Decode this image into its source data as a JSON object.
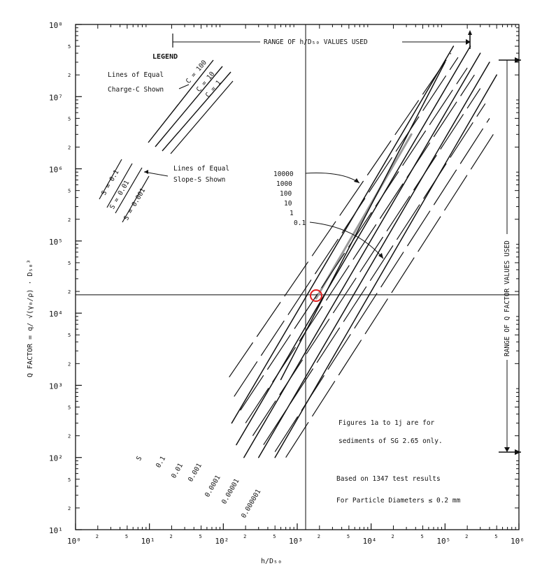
{
  "chart_data": {
    "type": "line",
    "title": "",
    "xlabel": "h/D₅₀",
    "ylabel": "Q  FACTOR  =  q/ √(γ₀/ρ) · D₅₀³",
    "x_scale": "log",
    "y_scale": "log",
    "xlim": [
      1,
      1000000
    ],
    "ylim": [
      10,
      100000000
    ],
    "x_major_ticks": [
      {
        "value": 1,
        "label": "10⁰"
      },
      {
        "value": 10,
        "label": "10¹"
      },
      {
        "value": 100,
        "label": "10²"
      },
      {
        "value": 1000,
        "label": "10³"
      },
      {
        "value": 10000,
        "label": "10⁴"
      },
      {
        "value": 100000,
        "label": "10⁵"
      },
      {
        "value": 1000000,
        "label": "10⁶"
      }
    ],
    "y_major_ticks": [
      {
        "value": 10,
        "label": "10¹"
      },
      {
        "value": 100,
        "label": "10²"
      },
      {
        "value": 1000,
        "label": "10³"
      },
      {
        "value": 10000,
        "label": "10⁴"
      },
      {
        "value": 100000,
        "label": "10⁵"
      },
      {
        "value": 1000000,
        "label": "10⁶"
      },
      {
        "value": 10000000,
        "label": "10⁷"
      },
      {
        "value": 100000000,
        "label": "10⁸"
      }
    ],
    "minor_tick_labels": [
      "2",
      "5"
    ],
    "slope_lines": [
      {
        "label": "S",
        "x": [
          1800,
          35000
        ],
        "y": [
          16000,
          3000000
        ]
      },
      {
        "label": "0.1",
        "x": [
          600,
          100000
        ],
        "y": [
          1200,
          30000000
        ]
      },
      {
        "label": "0.01",
        "x": [
          130,
          130000
        ],
        "y": [
          300,
          50000000
        ]
      },
      {
        "label": "0.001",
        "x": [
          150,
          220000
        ],
        "y": [
          150,
          50000000
        ]
      },
      {
        "label": "0.0001",
        "x": [
          190,
          300000
        ],
        "y": [
          100,
          40000000
        ]
      },
      {
        "label": "0.00001",
        "x": [
          300,
          400000
        ],
        "y": [
          100,
          30000000
        ]
      },
      {
        "label": "0.000001",
        "x": [
          500,
          500000
        ],
        "y": [
          100,
          20000000
        ]
      }
    ],
    "charge_lines": [
      {
        "x": [
          120,
          120000
        ],
        "y": [
          1300,
          40000000
        ]
      },
      {
        "x": [
          140,
          150000
        ],
        "y": [
          700,
          35000000
        ]
      },
      {
        "x": [
          170,
          200000
        ],
        "y": [
          450,
          25000000
        ]
      },
      {
        "x": [
          200,
          250000
        ],
        "y": [
          300,
          20000000
        ]
      },
      {
        "x": [
          250,
          300000
        ],
        "y": [
          200,
          13000000
        ]
      },
      {
        "x": [
          350,
          350000
        ],
        "y": [
          150,
          8000000
        ]
      },
      {
        "x": [
          500,
          400000
        ],
        "y": [
          120,
          5000000
        ]
      },
      {
        "x": [
          700,
          450000
        ],
        "y": [
          100,
          3000000
        ]
      }
    ],
    "ref_lines": {
      "vertical_x": 1300,
      "horizontal_y": 18000,
      "point": {
        "x": 1800,
        "y": 17500
      },
      "point_color": "#e02020"
    },
    "charge_labels": [
      "10000",
      "1000",
      "100",
      "10",
      "1",
      "0.1"
    ],
    "slope_labels": [
      "S",
      "0.1",
      "0.01",
      "0.001",
      "0.0001",
      "0.00001",
      "0.000001"
    ],
    "legend": {
      "title": "LEGEND",
      "charge_caption_1": "Lines of Equal",
      "charge_caption_2": "Charge-C Shown",
      "charge_c": [
        "C = 100",
        "C = 10",
        "C = 1"
      ],
      "slope_caption_1": "Lines of Equal",
      "slope_caption_2": "Slope-S Shown",
      "slope_s": [
        "S = 0.1",
        "S = 0.01",
        "S = 0.001"
      ]
    },
    "annotations": {
      "range_h": "RANGE OF h/D₅₀ VALUES USED",
      "range_q": "RANGE OF Q FACTOR VALUES USED",
      "note1": "Figures 1a to 1j are for",
      "note2": "sediments of SG 2.65 only.",
      "note3": "Based on 1347 test results",
      "note4": "For Particle Diameters  ≤  0.2 mm"
    }
  }
}
